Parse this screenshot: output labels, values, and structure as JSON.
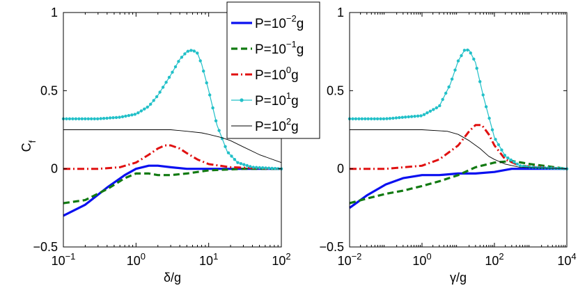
{
  "y_axis_label": "C",
  "y_axis_label_sub": "f",
  "legend": {
    "placement": "top-right of left panel",
    "entries": [
      {
        "prefix": "P=10",
        "exp": "−2",
        "suffix": "g"
      },
      {
        "prefix": "P=10",
        "exp": "−1",
        "suffix": "g"
      },
      {
        "prefix": "P=10",
        "exp": "0",
        "suffix": "g"
      },
      {
        "prefix": "P=10",
        "exp": "1",
        "suffix": "g"
      },
      {
        "prefix": "P=10",
        "exp": "2",
        "suffix": "g"
      }
    ]
  },
  "series_styles": [
    {
      "color": "#0a10f0",
      "dash": "",
      "width": 3.2,
      "markers": false
    },
    {
      "color": "#127a12",
      "dash": "9,5",
      "width": 3.2,
      "markers": false
    },
    {
      "color": "#e01010",
      "dash": "10,4,2,4",
      "width": 3.0,
      "markers": false
    },
    {
      "color": "#22c0c8",
      "dash": "",
      "width": 1.2,
      "markers": true
    },
    {
      "color": "#000000",
      "dash": "",
      "width": 0.9,
      "markers": false
    }
  ],
  "chart_data": [
    {
      "type": "line",
      "xscale": "log",
      "xlabel": "δ/g",
      "ylabel": "C_f",
      "xlim": [
        0.1,
        100
      ],
      "ylim": [
        -0.5,
        1
      ],
      "xticks": [
        {
          "base": "10",
          "exp": "−1"
        },
        {
          "base": "10",
          "exp": "0"
        },
        {
          "base": "10",
          "exp": "1"
        },
        {
          "base": "10",
          "exp": "2"
        }
      ],
      "yticks": [
        "−0.5",
        "0",
        "0.5",
        "1"
      ],
      "series": [
        {
          "name": "P=10^-2 g",
          "x": [
            0.1,
            0.2,
            0.4,
            0.7,
            1.0,
            1.5,
            2.0,
            3.0,
            5.0,
            10,
            30,
            100
          ],
          "y": [
            -0.3,
            -0.23,
            -0.12,
            -0.04,
            0.0,
            0.02,
            0.02,
            0.01,
            0.0,
            0.0,
            0.0,
            0.0
          ]
        },
        {
          "name": "P=10^-1 g",
          "x": [
            0.1,
            0.2,
            0.4,
            0.7,
            1.0,
            1.5,
            2.0,
            3.0,
            5.0,
            10,
            30,
            100
          ],
          "y": [
            -0.22,
            -0.2,
            -0.13,
            -0.06,
            -0.03,
            -0.03,
            -0.04,
            -0.04,
            -0.03,
            -0.01,
            0.0,
            0.0
          ]
        },
        {
          "name": "P=10^0 g",
          "x": [
            0.1,
            0.3,
            0.6,
            1.0,
            1.5,
            2.0,
            2.5,
            3.0,
            4.0,
            5.0,
            7.0,
            10,
            20,
            100
          ],
          "y": [
            0.0,
            0.0,
            0.01,
            0.04,
            0.09,
            0.13,
            0.15,
            0.15,
            0.13,
            0.1,
            0.06,
            0.03,
            0.01,
            0.0
          ]
        },
        {
          "name": "P=10^1 g",
          "x": [
            0.1,
            0.3,
            0.6,
            1.0,
            1.5,
            2.0,
            3.0,
            4.0,
            5.0,
            6.0,
            7.0,
            8.0,
            10,
            13,
            18,
            25,
            40,
            100
          ],
          "y": [
            0.32,
            0.32,
            0.33,
            0.35,
            0.4,
            0.47,
            0.6,
            0.7,
            0.75,
            0.76,
            0.74,
            0.67,
            0.5,
            0.28,
            0.11,
            0.04,
            0.01,
            0.0
          ]
        },
        {
          "name": "P=10^2 g",
          "x": [
            0.1,
            1.0,
            3.0,
            5.0,
            8.0,
            10,
            15,
            20,
            30,
            50,
            100
          ],
          "y": [
            0.25,
            0.25,
            0.25,
            0.24,
            0.23,
            0.22,
            0.2,
            0.18,
            0.14,
            0.09,
            0.04
          ]
        }
      ]
    },
    {
      "type": "line",
      "xscale": "log",
      "xlabel": "γ/g",
      "ylabel": "C_f",
      "xlim": [
        0.01,
        10000
      ],
      "ylim": [
        -0.5,
        1
      ],
      "xticks": [
        {
          "base": "10",
          "exp": "−2"
        },
        {
          "base": "10",
          "exp": "0"
        },
        {
          "base": "10",
          "exp": "2"
        },
        {
          "base": "10",
          "exp": "4"
        }
      ],
      "yticks": [
        "−0.5",
        "0",
        "0.5",
        "1"
      ],
      "series": [
        {
          "name": "P=10^-2 g",
          "x": [
            0.01,
            0.03,
            0.1,
            0.3,
            1,
            3,
            10,
            30,
            100,
            300,
            1000,
            10000
          ],
          "y": [
            -0.25,
            -0.17,
            -0.1,
            -0.06,
            -0.04,
            -0.04,
            -0.03,
            -0.03,
            -0.02,
            0.0,
            0.0,
            0.0
          ]
        },
        {
          "name": "P=10^-1 g",
          "x": [
            0.01,
            0.03,
            0.1,
            0.3,
            1,
            3,
            10,
            30,
            100,
            300,
            1000,
            10000
          ],
          "y": [
            -0.22,
            -0.19,
            -0.16,
            -0.14,
            -0.11,
            -0.08,
            -0.04,
            0.01,
            0.04,
            0.05,
            0.03,
            0.0
          ]
        },
        {
          "name": "P=10^0 g",
          "x": [
            0.01,
            0.1,
            1,
            3,
            10,
            20,
            30,
            45,
            70,
            100,
            200,
            500,
            10000
          ],
          "y": [
            0.0,
            0.0,
            0.02,
            0.06,
            0.15,
            0.24,
            0.28,
            0.28,
            0.22,
            0.15,
            0.06,
            0.02,
            0.0
          ]
        },
        {
          "name": "P=10^1 g",
          "x": [
            0.01,
            0.1,
            1,
            3,
            6,
            10,
            15,
            20,
            30,
            50,
            100,
            200,
            500,
            1000,
            10000
          ],
          "y": [
            0.32,
            0.32,
            0.34,
            0.4,
            0.54,
            0.69,
            0.76,
            0.76,
            0.68,
            0.46,
            0.2,
            0.08,
            0.02,
            0.01,
            0.0
          ]
        },
        {
          "name": "P=10^2 g",
          "x": [
            0.01,
            1,
            5,
            10,
            20,
            40,
            70,
            100,
            200,
            500,
            10000
          ],
          "y": [
            0.25,
            0.25,
            0.24,
            0.22,
            0.18,
            0.13,
            0.08,
            0.06,
            0.03,
            0.01,
            0.0
          ]
        }
      ]
    }
  ]
}
